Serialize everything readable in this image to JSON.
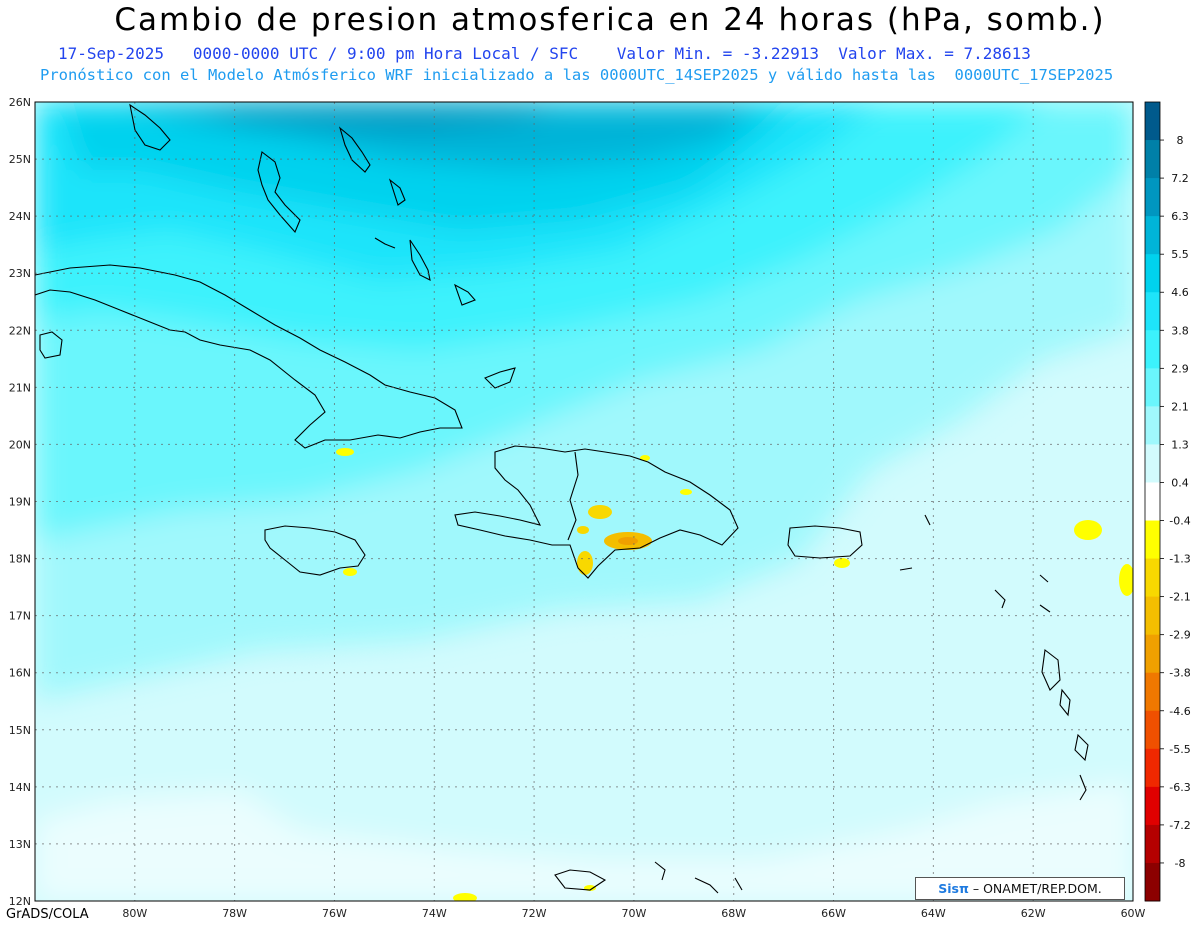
{
  "title": "Cambio de presion atmosferica en 24 horas (hPa, somb.)",
  "subtitle_line1": "17-Sep-2025   0000-0000 UTC / 9:00 pm Hora Local / SFC    Valor Min. = -3.22913  Valor Max. = 7.28613",
  "subtitle_line2": "Pronóstico con el Modelo Atmósferico WRF inicializado a las 0000UTC_14SEP2025 y válido hasta las  0000UTC_17SEP2025",
  "footer": "GrADS/COLA",
  "credit": {
    "brand": "Sisπ",
    "text": "– ONAMET/REP.DOM."
  },
  "axes": {
    "lat_ticks": [
      "26N",
      "25N",
      "24N",
      "23N",
      "22N",
      "21N",
      "20N",
      "19N",
      "18N",
      "17N",
      "16N",
      "15N",
      "14N",
      "13N",
      "12N"
    ],
    "lon_ticks": [
      "80W",
      "78W",
      "76W",
      "74W",
      "72W",
      "70W",
      "68W",
      "66W",
      "64W",
      "62W",
      "60W"
    ],
    "lon_range": [
      -82,
      -60
    ],
    "lat_range": [
      12,
      26
    ]
  },
  "colorbar": {
    "labels": [
      "8",
      "7.2",
      "6.3",
      "5.5",
      "4.6",
      "3.8",
      "2.9",
      "2.1",
      "1.3",
      "0.4",
      "-0.4",
      "-1.3",
      "-2.1",
      "-2.9",
      "-3.8",
      "-4.6",
      "-5.5",
      "-6.3",
      "-7.2",
      "-8"
    ],
    "colors": [
      "#005a8c",
      "#0080a8",
      "#0096c0",
      "#00b4d8",
      "#00d2ee",
      "#1ee4fa",
      "#3cf2fc",
      "#6af6fc",
      "#a0f8fc",
      "#d2fbfd",
      "#ffffff",
      "#ffff00",
      "#f8d800",
      "#f4be00",
      "#f0a000",
      "#f07800",
      "#f05000",
      "#f02800",
      "#e00000",
      "#b40000",
      "#8c0000"
    ]
  }
}
